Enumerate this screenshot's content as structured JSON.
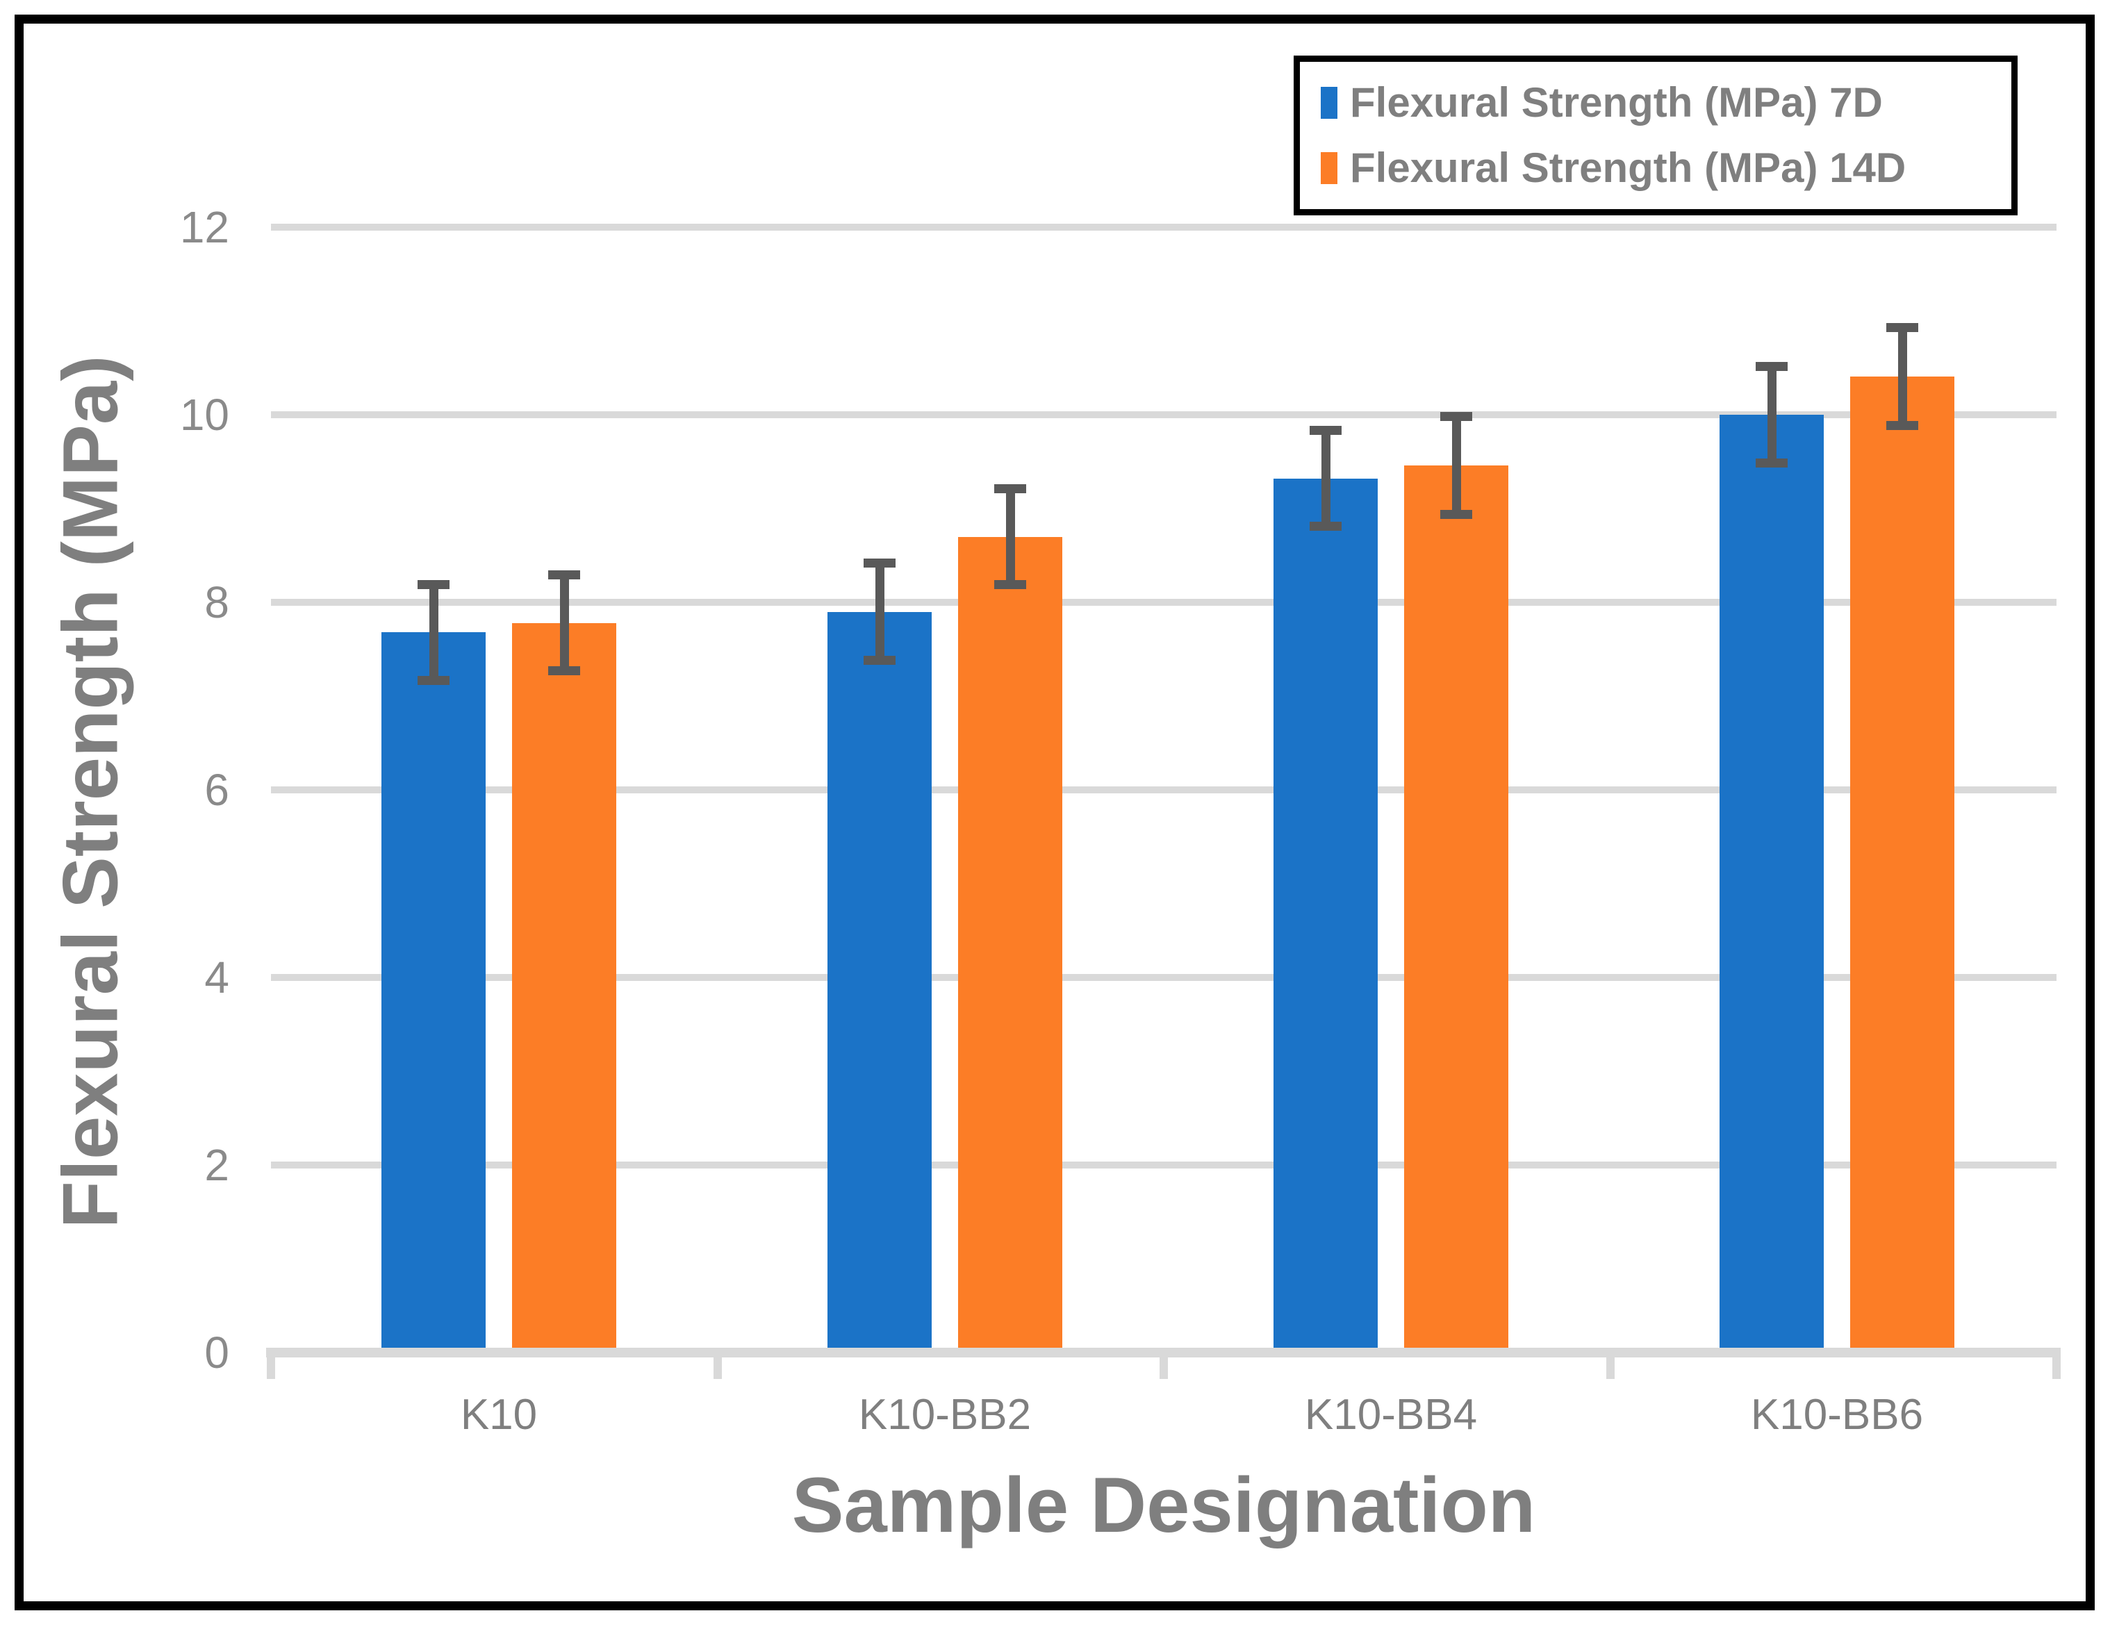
{
  "figure": {
    "background_color": "#FFFFFF",
    "outer_border_color": "#000000"
  },
  "legend": {
    "border_color": "#000000",
    "position": "top-right"
  },
  "chart_data": {
    "type": "bar",
    "title": "",
    "xlabel": "Sample Designation",
    "ylabel": "Flexural Strength (MPa)",
    "categories": [
      "K10",
      "K10-BB2",
      "K10-BB4",
      "K10-BB6"
    ],
    "series": [
      {
        "name": "Flexural Strength (MPa) 7D",
        "color": "#1B73C7",
        "values": [
          7.68,
          7.9,
          9.32,
          10.0
        ],
        "errors": [
          0.56,
          0.57,
          0.56,
          0.56
        ]
      },
      {
        "name": "Flexural Strength (MPa) 14D",
        "color": "#FC7D26",
        "values": [
          7.78,
          8.7,
          9.46,
          10.41
        ],
        "errors": [
          0.56,
          0.56,
          0.57,
          0.57
        ]
      }
    ],
    "ylim": [
      0,
      12
    ],
    "yticks": [
      0,
      2,
      4,
      6,
      8,
      10,
      12
    ],
    "grid": true,
    "gridline_color": "#D9D9D9",
    "axis_line_color": "#D9D9D9",
    "error_bar_color": "#595959",
    "tick_label_color": "#8A8A8A",
    "category_label_color": "#7F7F7F",
    "title_text_color": "#7F7F7F",
    "legend_position": "top-right"
  }
}
